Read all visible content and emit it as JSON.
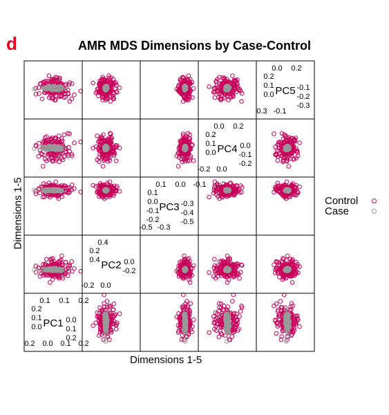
{
  "figure": {
    "panel_letter": "d",
    "title": "AMR MDS Dimensions by Case-Control",
    "xlabel": "Dimensions 1-5",
    "ylabel": "Dimensions 1-5",
    "colors": {
      "control": "#c8005a",
      "case": "#999999",
      "letter": "#e8001c"
    }
  },
  "legend": [
    {
      "label": "Control",
      "color": "#c8005a"
    },
    {
      "label": "Case",
      "color": "#999999"
    }
  ],
  "chart_data": {
    "type": "scatter",
    "subtype": "scatterplot-matrix",
    "title": "AMR MDS Dimensions by Case-Control",
    "xlabel": "Dimensions 1-5",
    "ylabel": "Dimensions 1-5",
    "variables": [
      {
        "name": "PC1",
        "range": [
          -0.25,
          0.25
        ],
        "ticks_upper": [
          "0.1",
          "0.1",
          "0.2"
        ],
        "ticks_lower": [
          "0.2",
          "0.0",
          "0.1",
          "0.2"
        ],
        "ticks_left": [
          "0.2",
          "0.1",
          "0.0"
        ],
        "ticks_right": [
          "0.0",
          "0.1",
          "0.2"
        ]
      },
      {
        "name": "PC2",
        "range": [
          -0.3,
          0.45
        ],
        "ticks_upper": [
          "0.4"
        ],
        "ticks_lower": [
          "-0.2",
          "0.0"
        ],
        "ticks_left": [
          "0.2",
          "0.4"
        ],
        "ticks_right": [
          "0.0",
          "-0.2"
        ]
      },
      {
        "name": "PC3",
        "range": [
          -0.6,
          0.15
        ],
        "ticks_upper": [
          "0.1",
          "0.0",
          "-0.1",
          "-0.2"
        ],
        "ticks_lower": [
          "-0.5",
          "-0.3"
        ],
        "ticks_left": [
          "0.1",
          "0.0",
          "-0.1",
          "-0.2"
        ],
        "ticks_right": [
          "-0.3",
          "-0.4",
          "-0.5"
        ]
      },
      {
        "name": "PC4",
        "range": [
          -0.25,
          0.25
        ],
        "ticks_upper": [
          "0.0",
          "0.2"
        ],
        "ticks_lower": [
          "-0.2",
          "0.0"
        ],
        "ticks_left": [
          "0.2",
          "0.1",
          "0.0"
        ],
        "ticks_right": [
          "0.0",
          "-0.1",
          "-0.2"
        ]
      },
      {
        "name": "PC5",
        "range": [
          -0.35,
          0.3
        ],
        "ticks_upper": [
          "0.0",
          "0.2"
        ],
        "ticks_lower": [
          "0.3",
          "-0.1"
        ],
        "ticks_left": [
          "0.2",
          "0.1",
          "0.0"
        ],
        "ticks_right": [
          "-0.1",
          "-0.2",
          "-0.3"
        ]
      }
    ],
    "groups": [
      {
        "name": "Control",
        "color": "#c8005a",
        "n": 160,
        "spread": [
          0.08,
          0.07,
          0.045,
          0.06,
          0.065
        ]
      },
      {
        "name": "Case",
        "color": "#999999",
        "n": 160,
        "spread": [
          0.045,
          0.007,
          0.006,
          0.008,
          0.01
        ]
      }
    ]
  }
}
